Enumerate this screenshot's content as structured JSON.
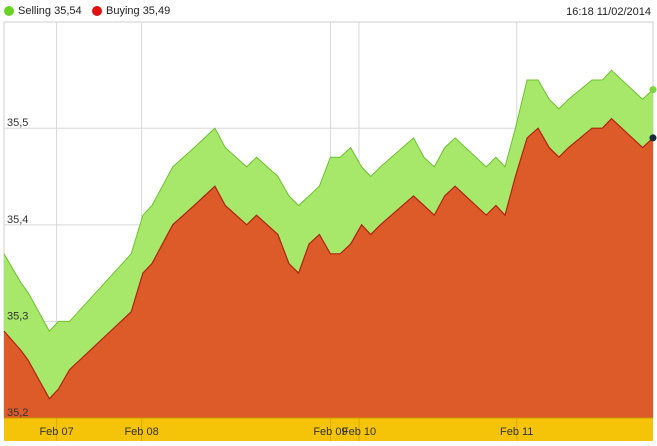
{
  "legend": {
    "selling_label": "Selling 35,54",
    "buying_label": "Buying 35,49",
    "timestamp": "16:18 11/02/2014"
  },
  "colors": {
    "selling": "#a7e86a",
    "selling_line": "#6cc22e",
    "selling_dot": "#6ad125",
    "buying": "#dd5b29",
    "buying_line": "#b0230f",
    "buying_dot": "#e01010",
    "xaxis_band": "#f5c307",
    "grid": "#d8d8d8",
    "end_dot_selling": "#7ed43a",
    "end_dot_buying": "#1a2a3a"
  },
  "chart_data": {
    "type": "area",
    "ylim": [
      35.2,
      35.61
    ],
    "yticks": [
      {
        "value": 35.2,
        "label": "35,2"
      },
      {
        "value": 35.3,
        "label": "35,3"
      },
      {
        "value": 35.4,
        "label": "35,4"
      },
      {
        "value": 35.5,
        "label": "35,5"
      }
    ],
    "xlim": [
      0,
      100
    ],
    "xticks": [
      {
        "x": 8.1,
        "label": "Feb 07"
      },
      {
        "x": 21.2,
        "label": "Feb 08"
      },
      {
        "x": 50.3,
        "label": "Feb 09"
      },
      {
        "x": 54.7,
        "label": "Feb 10"
      },
      {
        "x": 79.0,
        "label": "Feb 11"
      }
    ],
    "grid": true,
    "legend_position": "top-left",
    "series": [
      {
        "name": "Selling",
        "points": [
          [
            0,
            35.37
          ],
          [
            2.6,
            35.34
          ],
          [
            3.7,
            35.33
          ],
          [
            7.0,
            35.29
          ],
          [
            8.4,
            35.3
          ],
          [
            10.1,
            35.3
          ],
          [
            19.6,
            35.37
          ],
          [
            21.4,
            35.41
          ],
          [
            22.8,
            35.42
          ],
          [
            26.0,
            35.46
          ],
          [
            29.3,
            35.48
          ],
          [
            32.5,
            35.5
          ],
          [
            34.1,
            35.48
          ],
          [
            37.4,
            35.46
          ],
          [
            38.9,
            35.47
          ],
          [
            42.2,
            35.45
          ],
          [
            43.9,
            35.43
          ],
          [
            45.4,
            35.42
          ],
          [
            47.0,
            35.43
          ],
          [
            48.6,
            35.44
          ],
          [
            50.3,
            35.47
          ],
          [
            51.8,
            35.47
          ],
          [
            53.4,
            35.48
          ],
          [
            55.1,
            35.46
          ],
          [
            56.5,
            35.45
          ],
          [
            58.0,
            35.46
          ],
          [
            63.1,
            35.49
          ],
          [
            64.7,
            35.47
          ],
          [
            66.3,
            35.46
          ],
          [
            67.9,
            35.48
          ],
          [
            69.5,
            35.49
          ],
          [
            74.3,
            35.46
          ],
          [
            75.8,
            35.47
          ],
          [
            77.2,
            35.46
          ],
          [
            78.8,
            35.5
          ],
          [
            80.6,
            35.55
          ],
          [
            82.3,
            35.55
          ],
          [
            84.0,
            35.53
          ],
          [
            85.5,
            35.52
          ],
          [
            87.0,
            35.53
          ],
          [
            90.6,
            35.55
          ],
          [
            92.2,
            35.55
          ],
          [
            93.6,
            35.56
          ],
          [
            98.4,
            35.53
          ],
          [
            100,
            35.54
          ]
        ]
      },
      {
        "name": "Buying",
        "points": [
          [
            0,
            35.29
          ],
          [
            2.6,
            35.27
          ],
          [
            3.7,
            35.26
          ],
          [
            7.0,
            35.22
          ],
          [
            8.4,
            35.23
          ],
          [
            10.1,
            35.25
          ],
          [
            19.6,
            35.31
          ],
          [
            21.4,
            35.35
          ],
          [
            22.8,
            35.36
          ],
          [
            26.0,
            35.4
          ],
          [
            29.3,
            35.42
          ],
          [
            32.5,
            35.44
          ],
          [
            34.1,
            35.42
          ],
          [
            37.4,
            35.4
          ],
          [
            38.9,
            35.41
          ],
          [
            42.2,
            35.39
          ],
          [
            43.9,
            35.36
          ],
          [
            45.4,
            35.35
          ],
          [
            47.0,
            35.38
          ],
          [
            48.6,
            35.39
          ],
          [
            50.3,
            35.37
          ],
          [
            51.8,
            35.37
          ],
          [
            53.4,
            35.38
          ],
          [
            55.1,
            35.4
          ],
          [
            56.5,
            35.39
          ],
          [
            58.0,
            35.4
          ],
          [
            63.1,
            35.43
          ],
          [
            64.7,
            35.42
          ],
          [
            66.3,
            35.41
          ],
          [
            67.9,
            35.43
          ],
          [
            69.5,
            35.44
          ],
          [
            74.3,
            35.41
          ],
          [
            75.8,
            35.42
          ],
          [
            77.2,
            35.41
          ],
          [
            78.8,
            35.45
          ],
          [
            80.6,
            35.49
          ],
          [
            82.3,
            35.5
          ],
          [
            84.0,
            35.48
          ],
          [
            85.5,
            35.47
          ],
          [
            87.0,
            35.48
          ],
          [
            90.6,
            35.5
          ],
          [
            92.2,
            35.5
          ],
          [
            93.6,
            35.51
          ],
          [
            98.4,
            35.48
          ],
          [
            100,
            35.49
          ]
        ]
      }
    ]
  }
}
